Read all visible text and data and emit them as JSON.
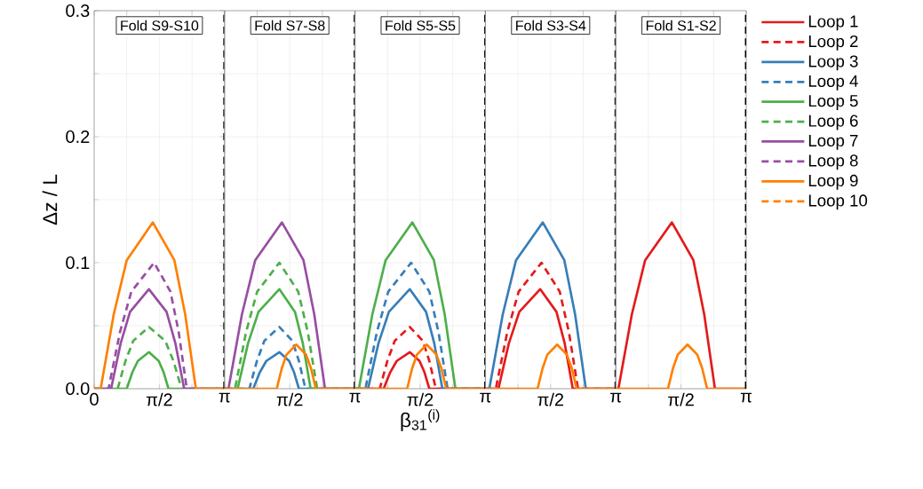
{
  "chart_data": [
    {
      "type": "line",
      "title": "Fold S9-S10",
      "ylabel": "Δz / L",
      "xlim": [
        0,
        3.1416
      ],
      "ylim": [
        0,
        0.3
      ],
      "xticks": [
        0,
        {
          "value": 0.7854,
          "label": null
        },
        {
          "value": 1.5708,
          "label": "π/2"
        },
        {
          "value": 2.3562,
          "label": null
        },
        {
          "value": 3.1416,
          "label": "π"
        }
      ],
      "yticks": [
        {
          "value": 0,
          "label": "0.0"
        },
        {
          "value": 0.05,
          "label": null
        },
        {
          "value": 0.1,
          "label": "0.1"
        },
        {
          "value": 0.15,
          "label": null
        },
        {
          "value": 0.2,
          "label": "0.2"
        },
        {
          "value": 0.25,
          "label": null
        },
        {
          "value": 0.3,
          "label": "0.3"
        }
      ],
      "grid": true,
      "ref_lines": [
        {
          "axis": "x",
          "value": 3.1416,
          "color": "#000000",
          "line_style": "dashed"
        }
      ],
      "series": [
        {
          "color": "#e41a1c",
          "line_style": "solid",
          "values": [
            null,
            null
          ]
        },
        {
          "color": "#e41a1c",
          "line_style": "dashed",
          "values": [
            null,
            null
          ]
        },
        {
          "color": "#377eb8",
          "line_style": "solid",
          "values": [
            null,
            null
          ]
        },
        {
          "color": "#377eb8",
          "line_style": "dashed",
          "values": [
            null,
            null
          ]
        },
        {
          "color": "#4daf4a",
          "line_style": "solid",
          "x": [
            0,
            0.785,
            0.92,
            1.052,
            1.319,
            1.555,
            1.674,
            1.791,
            3.1416
          ],
          "values": [
            0,
            0,
            0.013,
            0.022,
            0.029,
            0.022,
            0.013,
            0,
            0
          ]
        },
        {
          "color": "#4daf4a",
          "line_style": "dashed",
          "x": [
            0,
            0.565,
            0.754,
            0.942,
            1.319,
            1.712,
            1.91,
            2.105,
            3.1416
          ],
          "values": [
            0,
            0,
            0.022,
            0.038,
            0.049,
            0.038,
            0.022,
            0,
            0
          ]
        },
        {
          "color": "#984ea3",
          "line_style": "solid",
          "x": [
            0,
            0.408,
            0.638,
            0.864,
            1.319,
            1.744,
            1.957,
            2.168,
            3.1416
          ],
          "values": [
            0,
            0,
            0.036,
            0.061,
            0.079,
            0.061,
            0.036,
            0,
            0
          ]
        },
        {
          "color": "#984ea3",
          "line_style": "dashed",
          "x": [
            0,
            0.346,
            0.622,
            0.895,
            1.445,
            1.838,
            2.036,
            2.231,
            3.1416
          ],
          "values": [
            0,
            0,
            0.045,
            0.077,
            0.1,
            0.077,
            0.045,
            0,
            0
          ]
        },
        {
          "color": "#ff7f00",
          "line_style": "solid",
          "x": [
            0,
            0.157,
            0.471,
            0.785,
            1.414,
            1.932,
            2.193,
            2.45,
            3.1416
          ],
          "values": [
            0,
            0,
            0.059,
            0.102,
            0.132,
            0.102,
            0.059,
            0,
            0
          ]
        },
        {
          "color": "#ff7f00",
          "line_style": "dashed",
          "values": [
            null,
            null
          ]
        }
      ]
    },
    {
      "type": "line",
      "title": "Fold S7-S8",
      "xlim": [
        0,
        3.1416
      ],
      "ylim": [
        0,
        0.3
      ],
      "tick_labels": "x",
      "xticks": [
        {
          "value": 0,
          "label": null
        },
        {
          "value": 0.7854,
          "label": null
        },
        {
          "value": 1.5708,
          "label": "π/2"
        },
        {
          "value": 2.3562,
          "label": null
        },
        {
          "value": 3.1416,
          "label": "π"
        }
      ],
      "yticks": [
        0,
        0.05,
        0.1,
        0.15,
        0.2,
        0.25,
        0.3
      ],
      "grid": true,
      "ref_lines": [
        {
          "axis": "x",
          "value": 3.1416,
          "color": "#000000",
          "line_style": "dashed"
        }
      ],
      "series": [
        {
          "color": "#e41a1c",
          "line_style": "solid",
          "values": [
            null,
            null
          ]
        },
        {
          "color": "#e41a1c",
          "line_style": "dashed",
          "values": [
            null,
            null
          ]
        },
        {
          "color": "#377eb8",
          "line_style": "solid",
          "x": [
            0,
            0.691,
            0.848,
            1.005,
            1.319,
            1.555,
            1.674,
            1.791,
            3.1416
          ],
          "values": [
            0,
            0,
            0.013,
            0.022,
            0.029,
            0.022,
            0.013,
            0,
            0
          ]
        },
        {
          "color": "#377eb8",
          "line_style": "dashed",
          "x": [
            0,
            0.597,
            0.779,
            0.958,
            1.319,
            1.634,
            1.791,
            1.948,
            3.1416
          ],
          "values": [
            0,
            0,
            0.022,
            0.038,
            0.049,
            0.038,
            0.022,
            0,
            0
          ]
        },
        {
          "color": "#4daf4a",
          "line_style": "solid",
          "x": [
            0,
            0.314,
            0.565,
            0.817,
            1.319,
            1.696,
            1.885,
            2.073,
            3.1416
          ],
          "values": [
            0,
            0,
            0.036,
            0.061,
            0.079,
            0.061,
            0.036,
            0,
            0
          ]
        },
        {
          "color": "#4daf4a",
          "line_style": "dashed",
          "x": [
            0,
            0.251,
            0.518,
            0.785,
            1.319,
            1.775,
            2.004,
            2.231,
            3.1416
          ],
          "values": [
            0,
            0,
            0.045,
            0.077,
            0.1,
            0.077,
            0.045,
            0,
            0
          ]
        },
        {
          "color": "#984ea3",
          "line_style": "solid",
          "x": [
            0,
            0.094,
            0.418,
            0.738,
            1.382,
            1.901,
            2.161,
            2.419,
            3.1416
          ],
          "values": [
            0,
            0,
            0.059,
            0.102,
            0.132,
            0.102,
            0.059,
            0,
            0
          ]
        },
        {
          "color": "#984ea3",
          "line_style": "dashed",
          "values": [
            null,
            null
          ]
        },
        {
          "color": "#ff7f00",
          "line_style": "solid",
          "x": [
            0,
            1.257,
            1.376,
            1.492,
            1.728,
            1.963,
            2.083,
            2.199,
            3.1416
          ],
          "values": [
            0,
            0,
            0.016,
            0.027,
            0.035,
            0.027,
            0.016,
            0,
            0
          ]
        },
        {
          "color": "#ff7f00",
          "line_style": "dashed",
          "values": [
            null,
            null
          ]
        }
      ]
    },
    {
      "type": "line",
      "title": "Fold S5-S5",
      "xlabel": "β$_{31}$$^{(i)}$",
      "xlim": [
        0,
        3.1416
      ],
      "ylim": [
        0,
        0.3
      ],
      "tick_labels": "x",
      "xticks": [
        {
          "value": 0,
          "label": null
        },
        {
          "value": 0.7854,
          "label": null
        },
        {
          "value": 1.5708,
          "label": "π/2"
        },
        {
          "value": 2.3562,
          "label": null
        },
        {
          "value": 3.1416,
          "label": "π"
        }
      ],
      "yticks": [
        0,
        0.05,
        0.1,
        0.15,
        0.2,
        0.25,
        0.3
      ],
      "grid": true,
      "ref_lines": [
        {
          "axis": "x",
          "value": 3.1416,
          "color": "#000000",
          "line_style": "dashed"
        }
      ],
      "series": [
        {
          "color": "#e41a1c",
          "line_style": "solid",
          "x": [
            0,
            0.691,
            0.848,
            1.005,
            1.319,
            1.555,
            1.674,
            1.791,
            3.1416
          ],
          "values": [
            0,
            0,
            0.013,
            0.022,
            0.029,
            0.022,
            0.013,
            0,
            0
          ]
        },
        {
          "color": "#e41a1c",
          "line_style": "dashed",
          "x": [
            0,
            0.597,
            0.779,
            0.958,
            1.319,
            1.634,
            1.791,
            1.948,
            3.1416
          ],
          "values": [
            0,
            0,
            0.022,
            0.038,
            0.049,
            0.038,
            0.022,
            0,
            0
          ]
        },
        {
          "color": "#377eb8",
          "line_style": "solid",
          "x": [
            0,
            0.314,
            0.565,
            0.817,
            1.319,
            1.712,
            1.91,
            2.105,
            3.1416
          ],
          "values": [
            0,
            0,
            0.036,
            0.061,
            0.079,
            0.061,
            0.036,
            0,
            0
          ]
        },
        {
          "color": "#377eb8",
          "line_style": "dashed",
          "x": [
            0,
            0.251,
            0.528,
            0.801,
            1.351,
            1.791,
            2.011,
            2.231,
            3.1416
          ],
          "values": [
            0,
            0,
            0.045,
            0.077,
            0.1,
            0.077,
            0.045,
            0,
            0
          ]
        },
        {
          "color": "#4daf4a",
          "line_style": "solid",
          "x": [
            0,
            0.094,
            0.418,
            0.738,
            1.382,
            1.901,
            2.161,
            2.419,
            3.1416
          ],
          "values": [
            0,
            0,
            0.059,
            0.102,
            0.132,
            0.102,
            0.059,
            0,
            0
          ]
        },
        {
          "color": "#4daf4a",
          "line_style": "dashed",
          "values": [
            null,
            null
          ]
        },
        {
          "color": "#984ea3",
          "line_style": "solid",
          "values": [
            null,
            null
          ]
        },
        {
          "color": "#984ea3",
          "line_style": "dashed",
          "values": [
            null,
            null
          ]
        },
        {
          "color": "#ff7f00",
          "line_style": "solid",
          "x": [
            0,
            1.257,
            1.376,
            1.492,
            1.728,
            1.963,
            2.083,
            2.199,
            3.1416
          ],
          "values": [
            0,
            0,
            0.016,
            0.027,
            0.035,
            0.027,
            0.016,
            0,
            0
          ]
        },
        {
          "color": "#ff7f00",
          "line_style": "dashed",
          "values": [
            null,
            null
          ]
        }
      ]
    },
    {
      "type": "line",
      "title": "Fold S3-S4",
      "xlim": [
        0,
        3.1416
      ],
      "ylim": [
        0,
        0.3
      ],
      "tick_labels": "x",
      "xticks": [
        {
          "value": 0,
          "label": null
        },
        {
          "value": 0.7854,
          "label": null
        },
        {
          "value": 1.5708,
          "label": "π/2"
        },
        {
          "value": 2.3562,
          "label": null
        },
        {
          "value": 3.1416,
          "label": "π"
        }
      ],
      "yticks": [
        0,
        0.05,
        0.1,
        0.15,
        0.2,
        0.25,
        0.3
      ],
      "grid": true,
      "ref_lines": [
        {
          "axis": "x",
          "value": 3.1416,
          "color": "#000000",
          "line_style": "dashed"
        }
      ],
      "series": [
        {
          "color": "#e41a1c",
          "line_style": "solid",
          "x": [
            0,
            0.314,
            0.565,
            0.817,
            1.319,
            1.712,
            1.91,
            2.105,
            3.1416
          ],
          "values": [
            0,
            0,
            0.036,
            0.061,
            0.079,
            0.061,
            0.036,
            0,
            0
          ]
        },
        {
          "color": "#e41a1c",
          "line_style": "dashed",
          "x": [
            0,
            0.251,
            0.528,
            0.801,
            1.351,
            1.791,
            2.011,
            2.231,
            3.1416
          ],
          "values": [
            0,
            0,
            0.045,
            0.077,
            0.1,
            0.077,
            0.045,
            0,
            0
          ]
        },
        {
          "color": "#377eb8",
          "line_style": "solid",
          "x": [
            0,
            0.094,
            0.418,
            0.738,
            1.382,
            1.901,
            2.161,
            2.419,
            3.1416
          ],
          "values": [
            0,
            0,
            0.059,
            0.102,
            0.132,
            0.102,
            0.059,
            0,
            0
          ]
        },
        {
          "color": "#377eb8",
          "line_style": "dashed",
          "values": [
            null,
            null
          ]
        },
        {
          "color": "#4daf4a",
          "line_style": "solid",
          "values": [
            null,
            null
          ]
        },
        {
          "color": "#4daf4a",
          "line_style": "dashed",
          "values": [
            null,
            null
          ]
        },
        {
          "color": "#984ea3",
          "line_style": "solid",
          "values": [
            null,
            null
          ]
        },
        {
          "color": "#984ea3",
          "line_style": "dashed",
          "values": [
            null,
            null
          ]
        },
        {
          "color": "#ff7f00",
          "line_style": "solid",
          "x": [
            0,
            1.257,
            1.376,
            1.492,
            1.728,
            1.963,
            2.083,
            2.199,
            3.1416
          ],
          "values": [
            0,
            0,
            0.016,
            0.027,
            0.035,
            0.027,
            0.016,
            0,
            0
          ]
        },
        {
          "color": "#ff7f00",
          "line_style": "dashed",
          "values": [
            null,
            null
          ]
        }
      ]
    },
    {
      "type": "line",
      "title": "Fold S1-S2",
      "xlim": [
        0,
        3.1416
      ],
      "ylim": [
        0,
        0.3
      ],
      "tick_labels": "x",
      "legend": "right",
      "xticks": [
        {
          "value": 0,
          "label": null
        },
        {
          "value": 0.7854,
          "label": null
        },
        {
          "value": 1.5708,
          "label": "π/2"
        },
        {
          "value": 2.3562,
          "label": null
        },
        {
          "value": 3.1416,
          "label": "π"
        }
      ],
      "yticks": [
        0,
        0.05,
        0.1,
        0.15,
        0.2,
        0.25,
        0.3
      ],
      "grid": true,
      "ref_lines": [
        {
          "axis": "x",
          "value": 3.1416,
          "color": "#000000",
          "line_style": "dashed"
        }
      ],
      "series": [
        {
          "name": "Loop 1",
          "color": "#e41a1c",
          "line_style": "solid",
          "x": [
            0,
            0.063,
            0.386,
            0.707,
            1.351,
            1.869,
            2.13,
            2.388,
            3.1416
          ],
          "values": [
            0,
            0,
            0.059,
            0.102,
            0.132,
            0.102,
            0.059,
            0,
            0
          ]
        },
        {
          "name": "Loop 2",
          "color": "#e41a1c",
          "line_style": "dashed",
          "values": [
            null,
            null
          ]
        },
        {
          "name": "Loop 3",
          "color": "#377eb8",
          "line_style": "solid",
          "values": [
            null,
            null
          ]
        },
        {
          "name": "Loop 4",
          "color": "#377eb8",
          "line_style": "dashed",
          "values": [
            null,
            null
          ]
        },
        {
          "name": "Loop 5",
          "color": "#4daf4a",
          "line_style": "solid",
          "values": [
            null,
            null
          ]
        },
        {
          "name": "Loop 6",
          "color": "#4daf4a",
          "line_style": "dashed",
          "values": [
            null,
            null
          ]
        },
        {
          "name": "Loop 7",
          "color": "#984ea3",
          "line_style": "solid",
          "values": [
            null,
            null
          ]
        },
        {
          "name": "Loop 8",
          "color": "#984ea3",
          "line_style": "dashed",
          "values": [
            null,
            null
          ]
        },
        {
          "name": "Loop 9",
          "color": "#ff7f00",
          "line_style": "solid",
          "x": [
            0,
            1.257,
            1.376,
            1.492,
            1.728,
            1.963,
            2.083,
            2.199,
            3.1416
          ],
          "values": [
            0,
            0,
            0.016,
            0.027,
            0.035,
            0.027,
            0.016,
            0,
            0
          ]
        },
        {
          "name": "Loop 10",
          "color": "#ff7f00",
          "line_style": "dashed",
          "values": [
            null,
            null
          ]
        }
      ]
    }
  ]
}
